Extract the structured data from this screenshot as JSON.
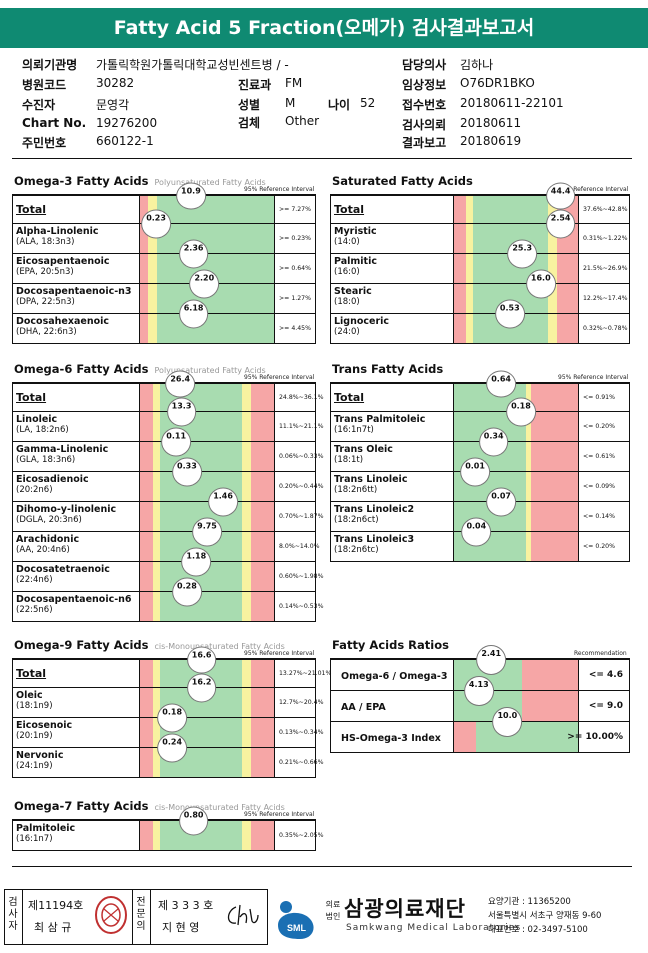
{
  "header": {
    "title": "Fatty Acid 5 Fraction(오메가) 검사결과보고서"
  },
  "info": {
    "inst_label": "의뢰기관명",
    "inst_value": "가톨릭학원가톨릭대학교성빈센트병 / -",
    "doctor_label": "담당의사",
    "doctor_value": "김하나",
    "code_label": "병원코드",
    "code_value": "30282",
    "dept_label": "진료과",
    "dept_value": "FM",
    "clinic_label": "임상정보",
    "clinic_value": "O76DR1BKO",
    "patient_label": "수진자",
    "patient_value": "문영각",
    "sex_label": "성별",
    "sex_value": "M",
    "age_label": "나이",
    "age_value": "52",
    "receipt_label": "접수번호",
    "receipt_value": "20180611-22101",
    "chart_label": "Chart No.",
    "chart_value": "19276200",
    "specimen_label": "검체",
    "specimen_value": "Other",
    "request_label": "검사의뢰",
    "request_value": "20180611",
    "id_label": "주민번호",
    "id_value": "660122-1",
    "report_label": "결과보고",
    "report_value": "20180619"
  },
  "sections": {
    "omega3": {
      "title": "Omega-3 Fatty Acids",
      "sub": "Polyunsaturated Fatty Acids",
      "ref": "95% Reference Interval",
      "rows": [
        {
          "n1": "Total",
          "n2": "",
          "val": "10.9",
          "ref": ">= 7.27%",
          "pos": 0.38,
          "zone": "low"
        },
        {
          "n1": "Alpha-Linolenic",
          "n2": "(ALA, 18:3n3)",
          "val": "0.23",
          "ref": ">= 0.23%",
          "pos": 0.12,
          "zone": "low"
        },
        {
          "n1": "Eicosapentaenoic",
          "n2": "(EPA, 20:5n3)",
          "val": "2.36",
          "ref": ">= 0.64%",
          "pos": 0.4,
          "zone": "low"
        },
        {
          "n1": "Docosapentaenoic-n3",
          "n2": "(DPA, 22:5n3)",
          "val": "2.20",
          "ref": ">= 1.27%",
          "pos": 0.48,
          "zone": "low"
        },
        {
          "n1": "Docosahexaenoic",
          "n2": "(DHA, 22:6n3)",
          "val": "6.18",
          "ref": ">= 4.45%",
          "pos": 0.4,
          "zone": "low"
        }
      ]
    },
    "saturated": {
      "title": "Saturated Fatty Acids",
      "sub": "",
      "ref": "95% Reference Interval",
      "rows": [
        {
          "n1": "Total",
          "n2": "",
          "val": "44.4",
          "ref": "37.6%~42.8%",
          "pos": 0.86,
          "zone": "mid"
        },
        {
          "n1": "Myristic",
          "n2": "(14:0)",
          "val": "2.54",
          "ref": "0.31%~1.22%",
          "pos": 0.86,
          "zone": "mid"
        },
        {
          "n1": "Palmitic",
          "n2": "(16:0)",
          "val": "25.3",
          "ref": "21.5%~26.9%",
          "pos": 0.55,
          "zone": "mid"
        },
        {
          "n1": "Stearic",
          "n2": "(18:0)",
          "val": "16.0",
          "ref": "12.2%~17.4%",
          "pos": 0.7,
          "zone": "mid"
        },
        {
          "n1": "Lignoceric",
          "n2": "(24:0)",
          "val": "0.53",
          "ref": "0.32%~0.78%",
          "pos": 0.45,
          "zone": "mid"
        }
      ]
    },
    "omega6": {
      "title": "Omega-6 Fatty Acids",
      "sub": "Polyunsaturated Fatty Acids",
      "ref": "95% Reference Interval",
      "rows": [
        {
          "n1": "Total",
          "n2": "",
          "val": "26.4",
          "ref": "24.8%~36.1%",
          "pos": 0.3,
          "zone": "mid"
        },
        {
          "n1": "Linoleic",
          "n2": "(LA, 18:2n6)",
          "val": "13.3",
          "ref": "11.1%~21.1%",
          "pos": 0.31,
          "zone": "mid"
        },
        {
          "n1": "Gamma-Linolenic",
          "n2": "(GLA, 18:3n6)",
          "val": "0.11",
          "ref": "0.06%~0.33%",
          "pos": 0.27,
          "zone": "mid"
        },
        {
          "n1": "Eicosadienoic",
          "n2": "(20:2n6)",
          "val": "0.33",
          "ref": "0.20%~0.44%",
          "pos": 0.35,
          "zone": "mid"
        },
        {
          "n1": "Dihomo-y-linolenic",
          "n2": "(DGLA, 20:3n6)",
          "val": "1.46",
          "ref": "0.70%~1.87%",
          "pos": 0.62,
          "zone": "mid"
        },
        {
          "n1": "Arachidonic",
          "n2": "(AA, 20:4n6)",
          "val": "9.75",
          "ref": "8.0%~14.0%",
          "pos": 0.5,
          "zone": "mid"
        },
        {
          "n1": "Docosatetraenoic",
          "n2": "(22:4n6)",
          "val": "1.18",
          "ref": "0.60%~1.98%",
          "pos": 0.42,
          "zone": "mid"
        },
        {
          "n1": "Docosapentaenoic-n6",
          "n2": "(22:5n6)",
          "val": "0.28",
          "ref": "0.14%~0.53%",
          "pos": 0.35,
          "zone": "mid"
        }
      ]
    },
    "trans": {
      "title": "Trans Fatty Acids",
      "sub": "",
      "ref": "95% Reference Interval",
      "rows": [
        {
          "n1": "Total",
          "n2": "",
          "val": "0.64",
          "ref": "<= 0.91%",
          "pos": 0.38,
          "zone": "high"
        },
        {
          "n1": "Trans Palmitoleic",
          "n2": "(16:1n7t)",
          "val": "0.18",
          "ref": "<= 0.20%",
          "pos": 0.54,
          "zone": "high"
        },
        {
          "n1": "Trans Oleic",
          "n2": "(18:1t)",
          "val": "0.34",
          "ref": "<= 0.61%",
          "pos": 0.32,
          "zone": "high"
        },
        {
          "n1": "Trans Linoleic",
          "n2": "(18:2n6tt)",
          "val": "0.01",
          "ref": "<= 0.09%",
          "pos": 0.17,
          "zone": "high"
        },
        {
          "n1": "Trans Linoleic2",
          "n2": "(18:2n6ct)",
          "val": "0.07",
          "ref": "<= 0.14%",
          "pos": 0.38,
          "zone": "high"
        },
        {
          "n1": "Trans Linoleic3",
          "n2": "(18:2n6tc)",
          "val": "0.04",
          "ref": "<= 0.20%",
          "pos": 0.18,
          "zone": "high"
        }
      ]
    },
    "omega9": {
      "title": "Omega-9 Fatty Acids",
      "sub": "cis-Monounsaturated Fatty Acids",
      "ref": "95% Reference Interval",
      "rows": [
        {
          "n1": "Total",
          "n2": "",
          "val": "16.6",
          "ref": "13.27%~21.01%",
          "pos": 0.46,
          "zone": "mid"
        },
        {
          "n1": "Oleic",
          "n2": "(18:1n9)",
          "val": "16.2",
          "ref": "12.7%~20.4%",
          "pos": 0.46,
          "zone": "mid"
        },
        {
          "n1": "Eicosenoic",
          "n2": "(20:1n9)",
          "val": "0.18",
          "ref": "0.13%~0.34%",
          "pos": 0.24,
          "zone": "mid"
        },
        {
          "n1": "Nervonic",
          "n2": "(24:1n9)",
          "val": "0.24",
          "ref": "0.21%~0.66%",
          "pos": 0.24,
          "zone": "mid"
        }
      ]
    },
    "omega7": {
      "title": "Omega-7 Fatty Acids",
      "sub": "cis-Monounsaturated Fatty Acids",
      "ref": "95% Reference Interval",
      "rows": [
        {
          "n1": "Palmitoleic",
          "n2": "(16:1n7)",
          "val": "0.80",
          "ref": "0.35%~2.05%",
          "pos": 0.4,
          "zone": "mid"
        }
      ]
    },
    "ratios": {
      "title": "Fatty Acids Ratios",
      "ref": "Recommendation",
      "rows": [
        {
          "n1": "Omega-6 / Omega-3",
          "val": "2.41",
          "rec": "<= 4.6",
          "pos": 0.3,
          "zone": "ratiohigh"
        },
        {
          "n1": "AA / EPA",
          "val": "4.13",
          "rec": "<= 9.0",
          "pos": 0.2,
          "zone": "ratiohigh"
        },
        {
          "n1": "HS-Omega-3 Index",
          "val": "10.0",
          "rec": ">= 10.00%",
          "pos": 0.43,
          "zone": "ratiolow"
        }
      ]
    }
  },
  "footer": {
    "lab_label_chars": [
      "검",
      "사",
      "자"
    ],
    "lab_no": "제11194호",
    "lab_name": "최 삼 규",
    "doc_label_chars": [
      "전",
      "문",
      "의"
    ],
    "doc_no": "제 3 3 3 호",
    "doc_name": "지 현 영",
    "corp_chars": [
      "의료",
      "법인"
    ],
    "org_name": "삼광의료재단",
    "org_en": "Samkwang Medical Laboratories",
    "logo_text": "SML",
    "care_no": "요양기관 : 11365200",
    "address": "서울특별시 서초구 양재동 9-60",
    "phone": "대표번호 : 02-3497-5100"
  }
}
